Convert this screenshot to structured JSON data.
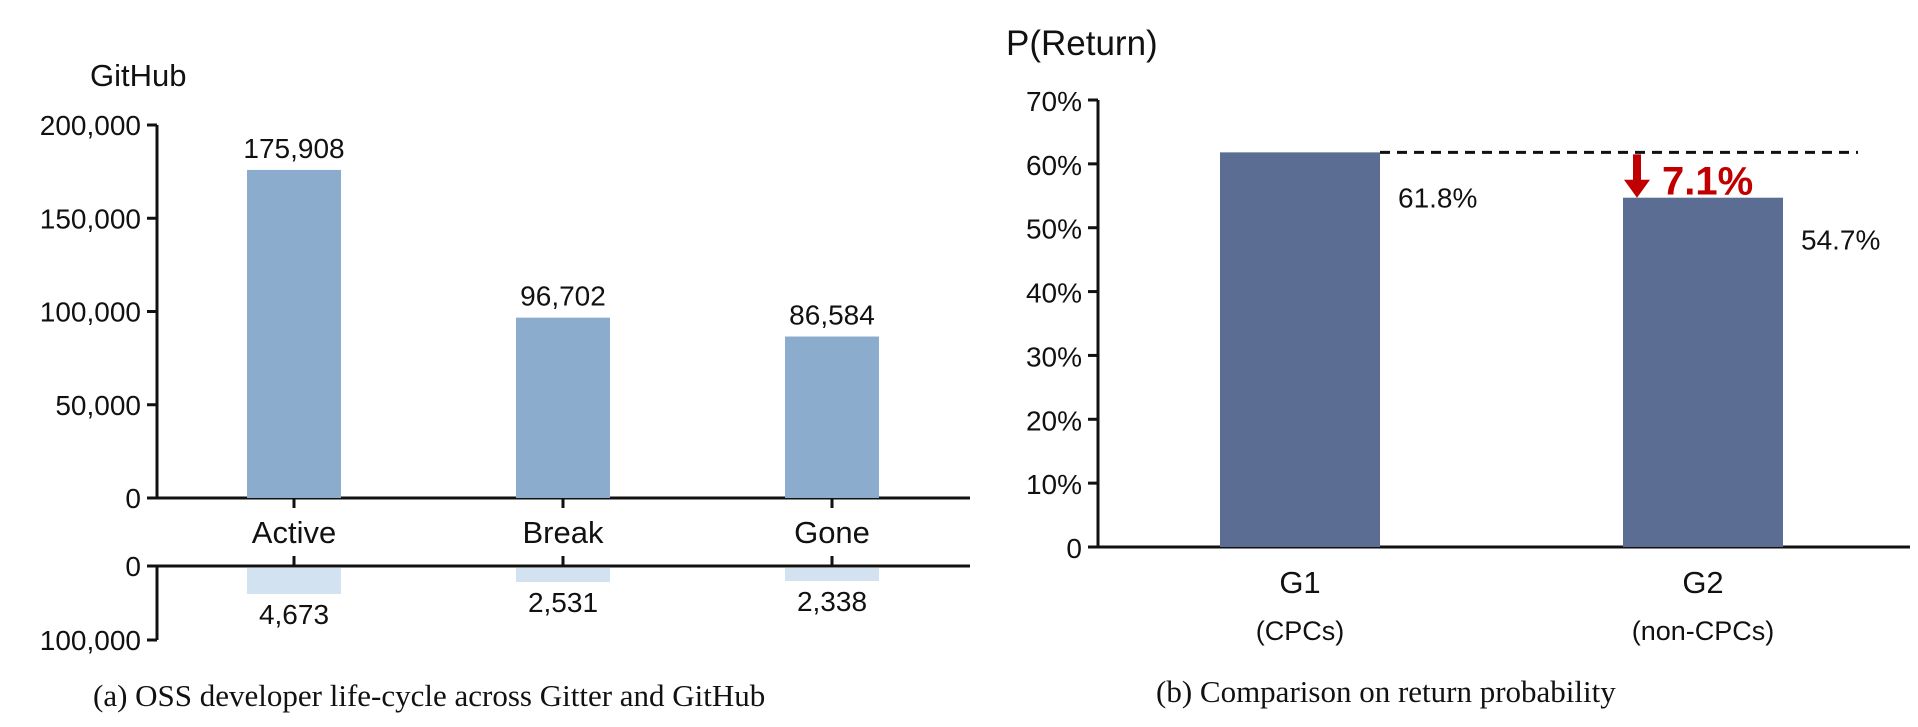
{
  "chart_data": [
    {
      "type": "bar",
      "ylabel": "GitHub",
      "categories": [
        "Active",
        "Break",
        "Gone"
      ],
      "values": [
        175908,
        96702,
        86584
      ],
      "value_labels": [
        "175,908",
        "96,702",
        "86,584"
      ],
      "ylim": [
        0,
        200000
      ],
      "yticks": [
        0,
        50000,
        100000,
        150000,
        200000
      ],
      "ytick_labels": [
        "0",
        "50,000",
        "100,000",
        "150,000",
        "200,000"
      ],
      "bar_color": "#8cacce",
      "lower": {
        "values": [
          4673,
          2531,
          2338
        ],
        "value_labels": [
          "4,673",
          "2,531",
          "2,338"
        ],
        "ytick_labels": [
          "0",
          "100,000"
        ],
        "bar_color": "#d3e2f0"
      },
      "caption": "(a) OSS developer life-cycle across Gitter and GitHub"
    },
    {
      "type": "bar",
      "ylabel": "P(Return)",
      "categories": [
        "G1",
        "G2"
      ],
      "category_sublabels": [
        "(CPCs)",
        "(non-CPCs)"
      ],
      "values": [
        61.8,
        54.7
      ],
      "value_labels": [
        "61.8%",
        "54.7%"
      ],
      "ylim": [
        0,
        70
      ],
      "yticks": [
        0,
        10,
        20,
        30,
        40,
        50,
        60,
        70
      ],
      "ytick_labels": [
        "0",
        "10%",
        "20%",
        "30%",
        "40%",
        "50%",
        "60%",
        "70%"
      ],
      "bar_color": "#5b6d93",
      "annotation": {
        "text": "7.1%",
        "color": "#c00000"
      },
      "caption": "(b) Comparison on return probability"
    }
  ]
}
